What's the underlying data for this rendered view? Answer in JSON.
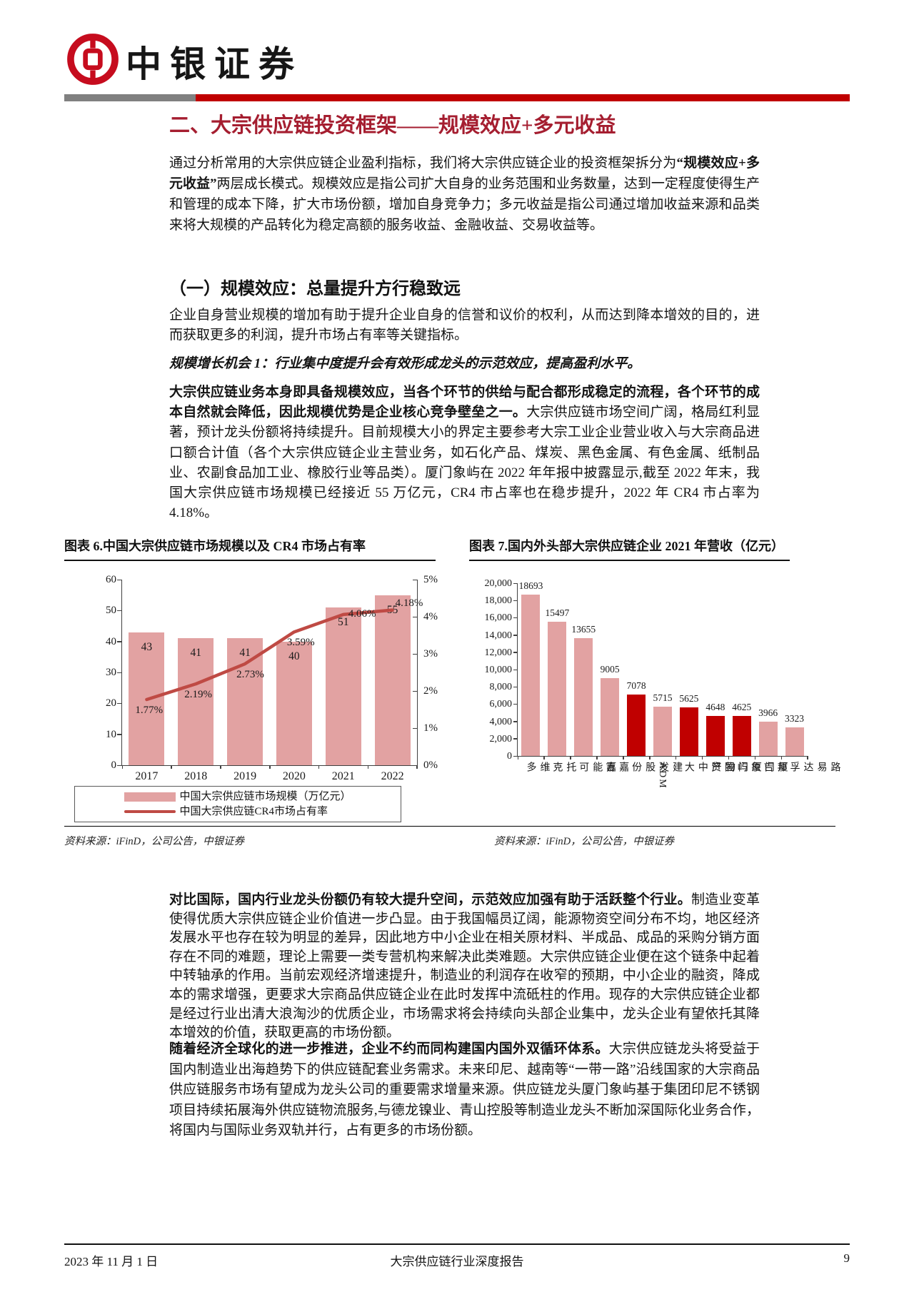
{
  "header": {
    "brand": "中银证券"
  },
  "section": {
    "title": "二、大宗供应链投资框架——规模效应+多元收益"
  },
  "paragraphs": {
    "p1": {
      "pre": "通过分析常用的大宗供应链企业盈利指标，我们将大宗供应链企业的投资框架拆分为",
      "bold": "“规模效应+多元收益”",
      "post": "两层成长模式。规模效应是指公司扩大自身的业务范围和业务数量，达到一定程度使得生产和管理的成本下降，扩大市场份额，增加自身竞争力；多元收益是指公司通过增加收益来源和品类来将大规模的产品转化为稳定高额的服务收益、金融收益、交易收益等。"
    },
    "h2": "（一）规模效应：总量提升方行稳致远",
    "p2": "企业自身营业规模的增加有助于提升企业自身的信誉和议价的权利，从而达到降本增效的目的，进而获取更多的利润，提升市场占有率等关键指标。",
    "p3": "规模增长机会 1：行业集中度提升会有效形成龙头的示范效应，提高盈利水平。",
    "p4": {
      "bold": "大宗供应链业务本身即具备规模效应，当各个环节的供给与配合都形成稳定的流程，各个环节的成本自然就会降低，因此规模优势是企业核心竞争壁垒之一。",
      "post": "大宗供应链市场空间广阔，格局红利显著，预计龙头份额将持续提升。目前规模大小的界定主要参考大宗工业企业营业收入与大宗商品进口额合计值（各个大宗供应链企业主营业务，如石化产品、煤炭、黑色金属、有色金属、纸制品业、农副食品加工业、橡胶行业等品类）。厦门象屿在 2022 年年报中披露显示,截至 2022 年末，我国大宗供应链市场规模已经接近 55 万亿元，CR4 市占率也在稳步提升，2022 年 CR4 市占率为 4.18%。"
    },
    "p5": {
      "bold": "对比国际，国内行业龙头份额仍有较大提升空间，示范效应加强有助于活跃整个行业。",
      "post": "制造业变革使得优质大宗供应链企业价值进一步凸显。由于我国幅员辽阔，能源物资空间分布不均，地区经济发展水平也存在较为明显的差异，因此地方中小企业在相关原材料、半成品、成品的采购分销方面存在不同的难题，理论上需要一类专营机构来解决此类难题。大宗供应链企业便在这个链条中起着中转轴承的作用。当前宏观经济增速提升，制造业的利润存在收窄的预期，中小企业的融资，降成本的需求增强，更要求大宗商品供应链企业在此时发挥中流砥柱的作用。现存的大宗供应链企业都是经过行业出清大浪淘沙的优质企业，市场需求将会持续向头部企业集中，龙头企业有望依托其降本增效的价值，获取更高的市场份额。"
    },
    "p6": {
      "bold": "随着经济全球化的进一步推进，企业不约而同构建国内国外双循环体系。",
      "post": "大宗供应链龙头将受益于国内制造业出海趋势下的供应链配套业务需求。未来印尼、越南等“一带一路”沿线国家的大宗商品供应链服务市场有望成为龙头公司的重要需求增量来源。供应链龙头厦门象屿基于集团印尼不锈钢项目持续拓展海外供应链物流服务,与德龙镍业、青山控股等制造业龙头不断加深国际化业务合作，将国内与国际业务双轨并行，占有更多的市场份额。"
    }
  },
  "figure6": {
    "title": "图表 6.中国大宗供应链市场规模以及 CR4 市场占有率",
    "legend": [
      "中国大宗供应链市场规模（万亿元）",
      "中国大宗供应链CR4市场占有率"
    ],
    "source": "资料来源：iFinD，公司公告，中银证券"
  },
  "figure7": {
    "title": "图表 7.国内外头部大宗供应链企业 2021 年营收（亿元）",
    "source": "资料来源：iFinD，公司公告，中银证券"
  },
  "chart_data": [
    {
      "type": "bar",
      "title": "中国大宗供应链市场规模以及CR4市场占有率",
      "categories": [
        "2017",
        "2018",
        "2019",
        "2020",
        "2021",
        "2022"
      ],
      "series": [
        {
          "name": "中国大宗供应链市场规模（万亿元）",
          "type": "bar",
          "values": [
            43,
            41,
            41,
            40,
            51,
            55
          ]
        },
        {
          "name": "中国大宗供应链CR4市场占有率",
          "type": "line",
          "values": [
            1.77,
            2.19,
            2.73,
            3.59,
            4.06,
            4.18
          ],
          "labels": [
            "1.77%",
            "2.19%",
            "2.73%",
            "3.59%",
            "4.06%",
            "4.18%"
          ]
        }
      ],
      "y_left": {
        "ticks": [
          "60",
          "50",
          "40",
          "30",
          "20",
          "10",
          "0"
        ],
        "max": 60
      },
      "y_right": {
        "ticks": [
          "5%",
          "4%",
          "3%",
          "2%",
          "1%",
          "0%"
        ],
        "max": 5
      },
      "legend_position": "bottom",
      "grid": false,
      "colors": {
        "bar": "#e2a2a2",
        "line": "#bf4a44"
      }
    },
    {
      "type": "bar",
      "title": "国内外头部大宗供应链企业2021年营收（亿元）",
      "categories": [
        "维多",
        "托克",
        "嘉能可",
        "嘉吉",
        "建发股份",
        "ADM",
        "物产中大",
        "厦门国贸",
        "厦门象屿",
        "邦吉",
        "路易达孚"
      ],
      "values": [
        18693,
        15497,
        13655,
        9005,
        7078,
        5715,
        5625,
        4648,
        4625,
        3966,
        3323
      ],
      "highlight_flags": [
        false,
        false,
        false,
        false,
        true,
        false,
        true,
        true,
        true,
        false,
        false
      ],
      "y": {
        "ticks": [
          "20,000",
          "18,000",
          "16,000",
          "14,000",
          "12,000",
          "10,000",
          "8,000",
          "6,000",
          "4,000",
          "2,000",
          "0"
        ],
        "max": 20000
      },
      "grid": false,
      "colors": {
        "bar": "#e2a2a2",
        "highlight": "#c00000"
      }
    }
  ],
  "footer": {
    "date": "2023 年 11 月 1 日",
    "center": "大宗供应链行业深度报告",
    "page": "9"
  }
}
